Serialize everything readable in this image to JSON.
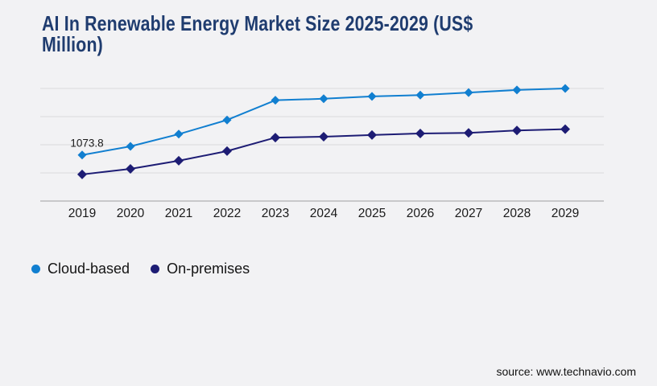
{
  "header": {
    "title": "AI In Renewable Energy Market Size 2025-2029 (US$ Million)"
  },
  "theme": {
    "background": "#f2f2f4",
    "title_color": "#1f3c6f",
    "grid_color": "#d9d9dc",
    "axis_color": "#aeaeb1",
    "text_color": "#1a1a1a",
    "cloud_color": "#117fd0",
    "onprem_color": "#1d1c74"
  },
  "chart_data": {
    "type": "line",
    "title": "AI In Renewable Energy Market Size 2025-2029 (US$ Million)",
    "xlabel": "",
    "ylabel": "",
    "x": [
      2019,
      2020,
      2021,
      2022,
      2023,
      2024,
      2025,
      2026,
      2027,
      2028,
      2029
    ],
    "series": [
      {
        "name": "Cloud-based",
        "color": "#117fd0",
        "marker": "diamond",
        "values": [
          1073.8,
          1275,
          1560,
          1890,
          2350,
          2385,
          2440,
          2470,
          2530,
          2590,
          2625
        ]
      },
      {
        "name": "On-premises",
        "color": "#1d1c74",
        "marker": "diamond",
        "values": [
          620,
          750,
          940,
          1165,
          1480,
          1500,
          1540,
          1575,
          1590,
          1645,
          1675
        ]
      }
    ],
    "ylim": [
      0,
      2625
    ],
    "grid": "horizontal-only",
    "y_axis_labels_visible": false,
    "legend_position": "bottom-left",
    "annotations": [
      {
        "series": "Cloud-based",
        "x": 2019,
        "text": "1073.8"
      }
    ]
  },
  "legend": {
    "items": [
      {
        "label": "Cloud-based",
        "color": "#117fd0"
      },
      {
        "label": "On-premises",
        "color": "#1d1c74"
      }
    ]
  },
  "footer": {
    "source": "source: www.technavio.com"
  }
}
